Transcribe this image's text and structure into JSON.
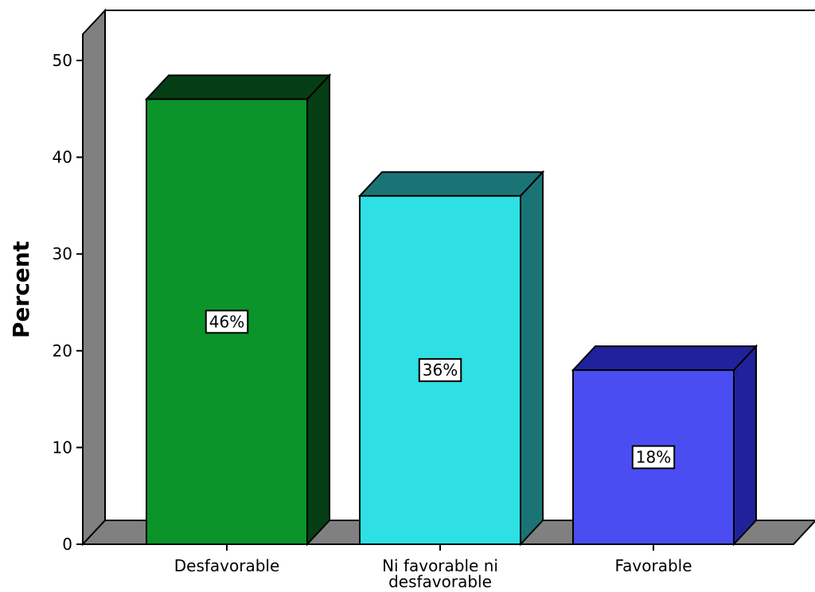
{
  "chart_data": {
    "type": "bar",
    "three_d": true,
    "categories": [
      [
        "Desfavorable"
      ],
      [
        "Ni favorable ni",
        "desfavorable"
      ],
      [
        "Favorable"
      ]
    ],
    "values": [
      46,
      36,
      18
    ],
    "data_labels": [
      "46%",
      "36%",
      "18%"
    ],
    "ylabel": "Percent",
    "xlabel": "",
    "ylim": [
      0,
      50
    ],
    "yticks": [
      "0",
      "10",
      "20",
      "30",
      "40",
      "50"
    ],
    "grid": false,
    "colors": {
      "bars": [
        {
          "front": "#0a9429",
          "top": "#053d14",
          "side": "#053d14"
        },
        {
          "front": "#2ee0e3",
          "top": "#1a7476",
          "side": "#1a7476"
        },
        {
          "front": "#4a4ef2",
          "top": "#20229c",
          "side": "#20229c"
        }
      ],
      "wall": "#ffffff",
      "wall_side": "#808080",
      "floor": "#808080",
      "outline": "#000000"
    }
  }
}
